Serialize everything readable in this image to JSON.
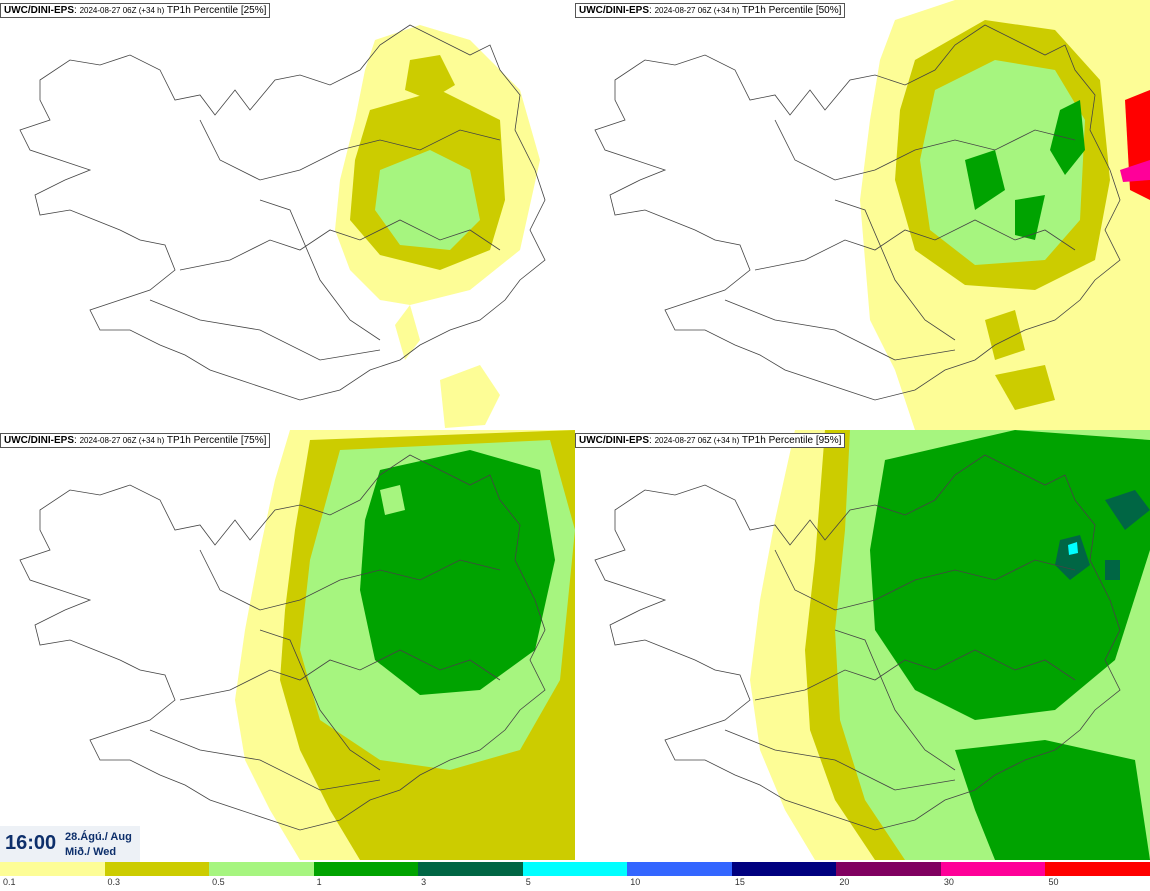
{
  "panels": [
    {
      "source": "UWC/DINI-EPS",
      "run": "2024-08-27 06Z (+34 h)",
      "field": "TP1h Percentile [25%]"
    },
    {
      "source": "UWC/DINI-EPS",
      "run": "2024-08-27 06Z (+34 h)",
      "field": "TP1h Percentile [50%]"
    },
    {
      "source": "UWC/DINI-EPS",
      "run": "2024-08-27 06Z (+34 h)",
      "field": "TP1h Percentile [75%]"
    },
    {
      "source": "UWC/DINI-EPS",
      "run": "2024-08-27 06Z (+34 h)",
      "field": "TP1h Percentile [95%]"
    }
  ],
  "valid_time": {
    "time": "16:00",
    "date_line1": "28.Ágú./ Aug",
    "date_line2": "Mið./ Wed"
  },
  "legend": {
    "labels": [
      "0.1",
      "0.3",
      "0.5",
      "1",
      "3",
      "5",
      "10",
      "15",
      "20",
      "30",
      "50"
    ],
    "colors": [
      "#fdfd96",
      "#cccc00",
      "#a6f57f",
      "#00a300",
      "#006644",
      "#00ffff",
      "#3366ff",
      "#00007f",
      "#800060",
      "#ff0099",
      "#ff0000"
    ]
  }
}
